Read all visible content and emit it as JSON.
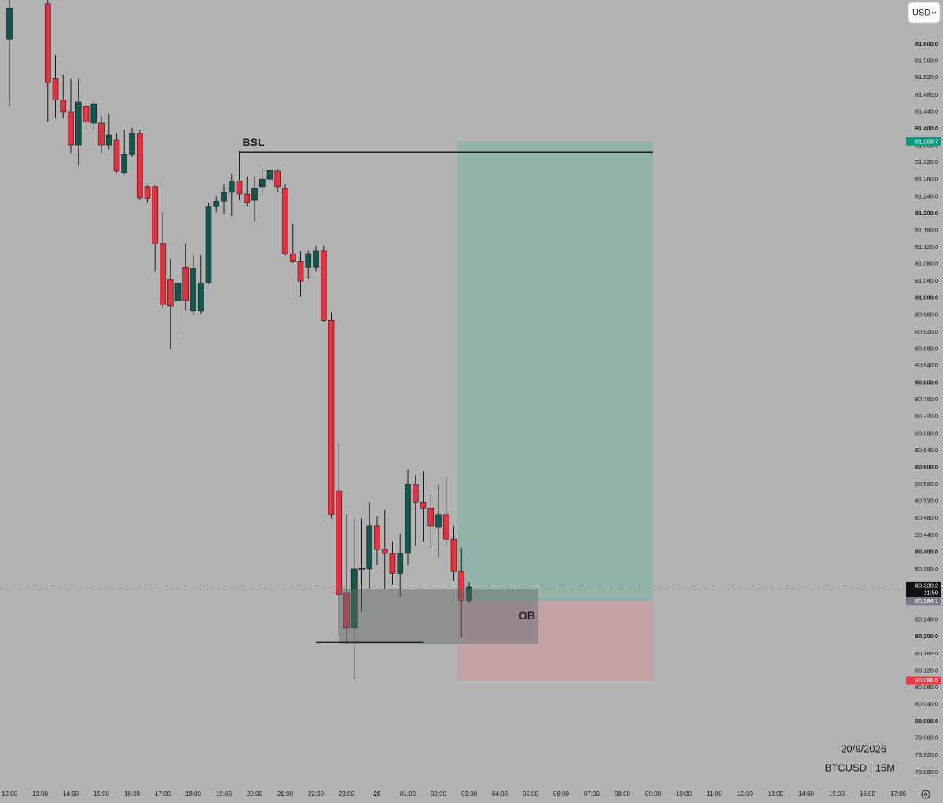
{
  "chart_data": {
    "type": "candlestick",
    "currency": "USD",
    "date": "20/9/2026",
    "symbol": "BTCUSD | 15M",
    "up_color": "#13574a",
    "down_color": "#ec2f3e",
    "grid": false,
    "ylim": [
      79850,
      81704
    ],
    "yticks": [
      {
        "value": 79880,
        "label": "79,880.0"
      },
      {
        "value": 79920,
        "label": "79,920.0"
      },
      {
        "value": 79960,
        "label": "79,960.0"
      },
      {
        "value": 80000,
        "label": "80,000.0"
      },
      {
        "value": 80040,
        "label": "80,040.0"
      },
      {
        "value": 80080,
        "label": "80,080.0"
      },
      {
        "value": 80120,
        "label": "80,120.0"
      },
      {
        "value": 80160,
        "label": "80,160.0"
      },
      {
        "value": 80200,
        "label": "80,200.0"
      },
      {
        "value": 80240,
        "label": "80,240.0"
      },
      {
        "value": 80280,
        "label": "80,280.0"
      },
      {
        "value": 80320,
        "label": "80,320.0"
      },
      {
        "value": 80360,
        "label": "80,360.0"
      },
      {
        "value": 80400,
        "label": "80,400.0"
      },
      {
        "value": 80440,
        "label": "80,440.0"
      },
      {
        "value": 80480,
        "label": "80,480.0"
      },
      {
        "value": 80520,
        "label": "80,520.0"
      },
      {
        "value": 80560,
        "label": "80,560.0"
      },
      {
        "value": 80600,
        "label": "80,600.0"
      },
      {
        "value": 80640,
        "label": "80,640.0"
      },
      {
        "value": 80680,
        "label": "80,680.0"
      },
      {
        "value": 80720,
        "label": "80,720.0"
      },
      {
        "value": 80760,
        "label": "80,760.0"
      },
      {
        "value": 80800,
        "label": "80,800.0"
      },
      {
        "value": 80840,
        "label": "80,840.0"
      },
      {
        "value": 80880,
        "label": "80,880.0"
      },
      {
        "value": 80920,
        "label": "80,920.0"
      },
      {
        "value": 80960,
        "label": "80,960.0"
      },
      {
        "value": 81000,
        "label": "81,000.0"
      },
      {
        "value": 81040,
        "label": "81,040.0"
      },
      {
        "value": 81080,
        "label": "81,080.0"
      },
      {
        "value": 81120,
        "label": "81,120.0"
      },
      {
        "value": 81160,
        "label": "81,160.0"
      },
      {
        "value": 81200,
        "label": "81,200.0"
      },
      {
        "value": 81240,
        "label": "81,240.0"
      },
      {
        "value": 81280,
        "label": "81,280.0"
      },
      {
        "value": 81320,
        "label": "81,320.0"
      },
      {
        "value": 81360,
        "label": "81,360.0"
      },
      {
        "value": 81400,
        "label": "81,400.0"
      },
      {
        "value": 81440,
        "label": "81,440.0"
      },
      {
        "value": 81480,
        "label": "81,480.0"
      },
      {
        "value": 81520,
        "label": "81,520.0"
      },
      {
        "value": 81560,
        "label": "81,560.0"
      },
      {
        "value": 81600,
        "label": "81,600.0"
      }
    ],
    "categories": [
      "12:00",
      null,
      null,
      null,
      "13:00",
      null,
      null,
      null,
      "14:00",
      null,
      null,
      null,
      "15:00",
      null,
      null,
      null,
      "16:00",
      null,
      null,
      null,
      "17:00",
      null,
      null,
      null,
      "18:00",
      null,
      null,
      null,
      "19:00",
      null,
      null,
      null,
      "20:00",
      null,
      null,
      null,
      "21:00",
      null,
      null,
      null,
      "22:00",
      null,
      null,
      null,
      "23:00",
      null,
      null,
      null,
      "20",
      null,
      null,
      null,
      "01:00",
      null,
      null,
      null,
      "02:00",
      null,
      null,
      null,
      "03:00",
      null,
      null,
      null,
      "04:00",
      null,
      null,
      null,
      "05:00",
      null,
      null,
      null,
      "06:00",
      null,
      null,
      null,
      "07:00",
      null,
      null,
      null,
      "08:00",
      null,
      null,
      null,
      "09:00",
      null,
      null,
      null,
      "10:00",
      null,
      null,
      null,
      "11:00",
      null,
      null,
      null,
      "12:00",
      null,
      null,
      null,
      "13:00",
      null,
      null,
      null,
      "14:00",
      null,
      null,
      null,
      "15:00",
      null,
      null,
      null,
      "16:00",
      null,
      null,
      null,
      "17:00"
    ],
    "open": [
      81611,
      null,
      null,
      null,
      null,
      81695,
      81518,
      81467,
      81439,
      81361,
      81453,
      81413,
      81413,
      81361,
      81374,
      81296,
      81340,
      81389,
      81263,
      81263,
      81129,
      81044,
      80994,
      81073,
      80970,
      80970,
      81036,
      81216,
      81229,
      81250,
      81277,
      81246,
      81231,
      81263,
      81281,
      81300,
      81259,
      81105,
      81086,
      81073,
      81073,
      81111,
      80947,
      80545,
      80304,
      80221,
      80360,
      80360,
      80462,
      80406,
      80397,
      80350,
      80397,
      80560,
      80517,
      80504,
      80458,
      80488,
      80430,
      80354,
      80285,
      null,
      null,
      null,
      null,
      null,
      null,
      null,
      null,
      null,
      null,
      null,
      null,
      null,
      null,
      null,
      null,
      null,
      null,
      null,
      null,
      null,
      null,
      null,
      null,
      null,
      null,
      null,
      null,
      null,
      null,
      null,
      null,
      null,
      null,
      null,
      null,
      null,
      null,
      null,
      null,
      null,
      null,
      null,
      null,
      null,
      null,
      null,
      null,
      null,
      null,
      null,
      null,
      null,
      null,
      null,
      null
    ],
    "high": [
      81704,
      null,
      null,
      null,
      null,
      81704,
      81574,
      81528,
      81518,
      81518,
      81500,
      81467,
      81429,
      81435,
      81389,
      81398,
      81402,
      81398,
      81266,
      81266,
      81203,
      81092,
      81064,
      81129,
      81101,
      81101,
      81226,
      81240,
      81268,
      81292,
      81348,
      81287,
      81287,
      81305,
      81305,
      81305,
      81268,
      81175,
      81111,
      81111,
      81124,
      81124,
      80966,
      80656,
      80489,
      80480,
      80480,
      80517,
      80484,
      80499,
      80425,
      80443,
      80595,
      80582,
      80591,
      80536,
      80558,
      80577,
      80462,
      80410,
      80328,
      null,
      null,
      null,
      null,
      null,
      null,
      null,
      null,
      null,
      null,
      null,
      null,
      null,
      null,
      null,
      null,
      null,
      null,
      null,
      null,
      null,
      null,
      null,
      null,
      null,
      null,
      null,
      null,
      null,
      null,
      null,
      null,
      null,
      null,
      null,
      null,
      null,
      null,
      null,
      null,
      null,
      null,
      null,
      null,
      null,
      null,
      null,
      null,
      null,
      null,
      null,
      null,
      null,
      null,
      null,
      null
    ],
    "low": [
      81453,
      null,
      null,
      null,
      null,
      81416,
      81426,
      81426,
      81342,
      81314,
      81398,
      81398,
      81342,
      81351,
      81296,
      81292,
      81333,
      81231,
      81226,
      81064,
      80977,
      80879,
      80916,
      80971,
      80962,
      80962,
      81033,
      81203,
      81200,
      81194,
      81231,
      81218,
      81181,
      81244,
      81268,
      81250,
      81101,
      81083,
      81003,
      81046,
      81064,
      80944,
      80480,
      80202,
      80183,
      80100,
      80258,
      80313,
      80369,
      80313,
      80323,
      80295,
      80369,
      80415,
      80425,
      80410,
      80387,
      80415,
      80332,
      80198,
      80280,
      null,
      null,
      null,
      null,
      null,
      null,
      null,
      null,
      null,
      null,
      null,
      null,
      null,
      null,
      null,
      null,
      null,
      null,
      null,
      null,
      null,
      null,
      null,
      null,
      null,
      null,
      null,
      null,
      null,
      null,
      null,
      null,
      null,
      null,
      null,
      null,
      null,
      null,
      null,
      null,
      null,
      null,
      null,
      null,
      null,
      null,
      null,
      null,
      null,
      null,
      null,
      null,
      null,
      null,
      null,
      null
    ],
    "close": [
      81685,
      null,
      null,
      null,
      null,
      81509,
      81467,
      81439,
      81361,
      81463,
      81416,
      81459,
      81361,
      81385,
      81300,
      81340,
      81389,
      81237,
      81235,
      81129,
      80984,
      80981,
      81036,
      80994,
      81070,
      81036,
      81216,
      81229,
      81250,
      81277,
      81246,
      81226,
      81259,
      81281,
      81301,
      81263,
      81105,
      81086,
      81040,
      81105,
      81111,
      80947,
      80489,
      80300,
      80221,
      80360,
      80361,
      80462,
      80406,
      80397,
      80350,
      80397,
      80560,
      80517,
      80504,
      80462,
      80488,
      80430,
      80354,
      80285,
      80317,
      null,
      null,
      null,
      null,
      null,
      null,
      null,
      null,
      null,
      null,
      null,
      null,
      null,
      null,
      null,
      null,
      null,
      null,
      null,
      null,
      null,
      null,
      null,
      null,
      null,
      null,
      null,
      null,
      null,
      null,
      null,
      null,
      null,
      null,
      null,
      null,
      null,
      null,
      null,
      null,
      null,
      null,
      null,
      null,
      null,
      null,
      null,
      null,
      null,
      null,
      null,
      null,
      null,
      null,
      null,
      null
    ],
    "annotations": {
      "bsl": {
        "label": "BSL",
        "price": 81344
      },
      "order_block": {
        "label": "OB",
        "top": 80313,
        "bottom": 80183
      },
      "sweep_low": 80187,
      "position": {
        "target": {
          "value": 81369.7,
          "label": "81,369.7"
        },
        "entry": {
          "value": 80284.1,
          "label": "80,284.1"
        },
        "stop": {
          "value": 80096.5,
          "label": "80,096.5"
        }
      },
      "last_price": {
        "value": 80320.2,
        "label": "80,320.2"
      },
      "countdown": "11:50"
    }
  }
}
